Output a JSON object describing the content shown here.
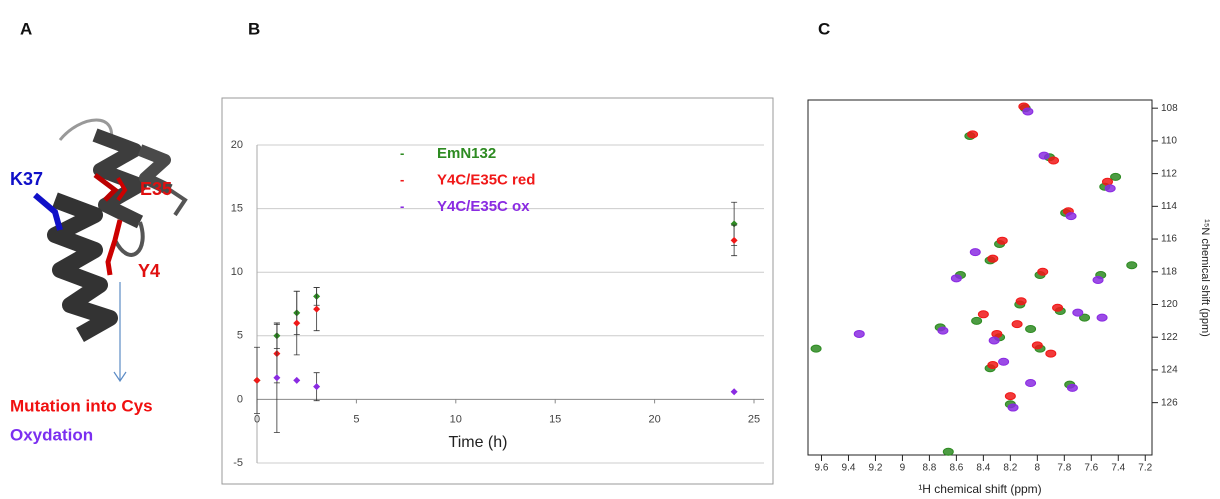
{
  "panel_labels": [
    "A",
    "B",
    "C"
  ],
  "structure": {
    "residues": [
      {
        "label": "K37",
        "color": "#1010c8"
      },
      {
        "label": "E35",
        "color": "#e01010"
      },
      {
        "label": "Y4",
        "color": "#e01010"
      }
    ],
    "legend": [
      {
        "label": "Mutation into Cys",
        "color": "#f01010"
      },
      {
        "label": "Oxydation",
        "color": "#7b2ff0"
      }
    ]
  },
  "chart_data": [
    {
      "type": "scatter",
      "xlabel": "Time (h)",
      "xlim": [
        0,
        25
      ],
      "ylim": [
        -5,
        20
      ],
      "xticks": [
        0,
        5,
        10,
        15,
        20,
        25
      ],
      "yticks": [
        -5,
        0,
        5,
        10,
        15,
        20
      ],
      "grid": true,
      "series": [
        {
          "name": "EmN132",
          "color": "#2e8b22",
          "x": [
            0,
            1,
            2,
            3,
            24
          ],
          "values": [
            1.5,
            5.0,
            6.8,
            8.1,
            13.8
          ],
          "errors": [
            0,
            1.0,
            1.7,
            0.7,
            1.7
          ]
        },
        {
          "name": "Y4C/E35C red",
          "color": "#f01818",
          "x": [
            0,
            1,
            2,
            3,
            24
          ],
          "values": [
            1.5,
            3.6,
            6.0,
            7.1,
            12.5
          ],
          "errors": [
            2.6,
            2.3,
            2.5,
            1.7,
            1.2
          ]
        },
        {
          "name": "Y4C/E35C ox",
          "color": "#8a2be2",
          "x": [
            1,
            2,
            3,
            24
          ],
          "values": [
            1.7,
            1.5,
            1.0,
            0.6
          ],
          "errors": [
            4.3,
            0,
            1.1,
            0
          ]
        }
      ]
    },
    {
      "type": "peaks",
      "xlabel": "¹H chemical shift (ppm)",
      "ylabel": "¹⁵N chemical shift (ppm)",
      "xlim": [
        9.7,
        7.15
      ],
      "ylim": [
        129.2,
        107.5
      ],
      "xticks": [
        9.6,
        9.4,
        9.2,
        9.0,
        8.8,
        8.6,
        8.4,
        8.2,
        8.0,
        7.8,
        7.6,
        7.4,
        7.2
      ],
      "yticks": [
        108,
        110,
        112,
        114,
        116,
        118,
        120,
        122,
        124,
        126
      ],
      "series": [
        {
          "color": "#2e8b22",
          "x": [
            8.09,
            8.5,
            7.91,
            7.5,
            7.42,
            7.79,
            8.28,
            8.57,
            8.35,
            7.98,
            7.53,
            8.13,
            7.83,
            8.72,
            8.28,
            7.98,
            8.35,
            7.76,
            8.2,
            9.64,
            8.66,
            7.3,
            8.45,
            8.05,
            7.65
          ],
          "values": [
            108.0,
            109.7,
            111.0,
            112.8,
            112.2,
            114.4,
            116.3,
            118.2,
            117.3,
            118.2,
            118.2,
            120.0,
            120.4,
            121.4,
            122.0,
            122.7,
            123.9,
            124.9,
            126.1,
            122.7,
            129.0,
            117.6,
            121.0,
            121.5,
            120.8
          ]
        },
        {
          "color": "#f01818",
          "x": [
            8.1,
            8.48,
            7.88,
            7.48,
            7.77,
            8.26,
            8.33,
            7.96,
            8.12,
            7.85,
            8.3,
            8.0,
            8.15,
            8.4,
            8.33,
            8.2,
            7.9
          ],
          "values": [
            107.9,
            109.6,
            111.2,
            112.5,
            114.3,
            116.1,
            117.2,
            118.0,
            119.8,
            120.2,
            121.8,
            122.5,
            121.2,
            120.6,
            123.7,
            125.6,
            123.0
          ]
        },
        {
          "color": "#8a2be2",
          "x": [
            8.07,
            7.95,
            7.46,
            7.75,
            8.6,
            7.55,
            9.32,
            8.7,
            8.32,
            7.7,
            8.25,
            7.74,
            8.18,
            8.05,
            7.52,
            8.46
          ],
          "values": [
            108.2,
            110.9,
            112.9,
            114.6,
            118.4,
            118.5,
            121.8,
            121.6,
            122.2,
            120.5,
            123.5,
            125.1,
            126.3,
            124.8,
            120.8,
            116.8
          ]
        }
      ]
    }
  ]
}
